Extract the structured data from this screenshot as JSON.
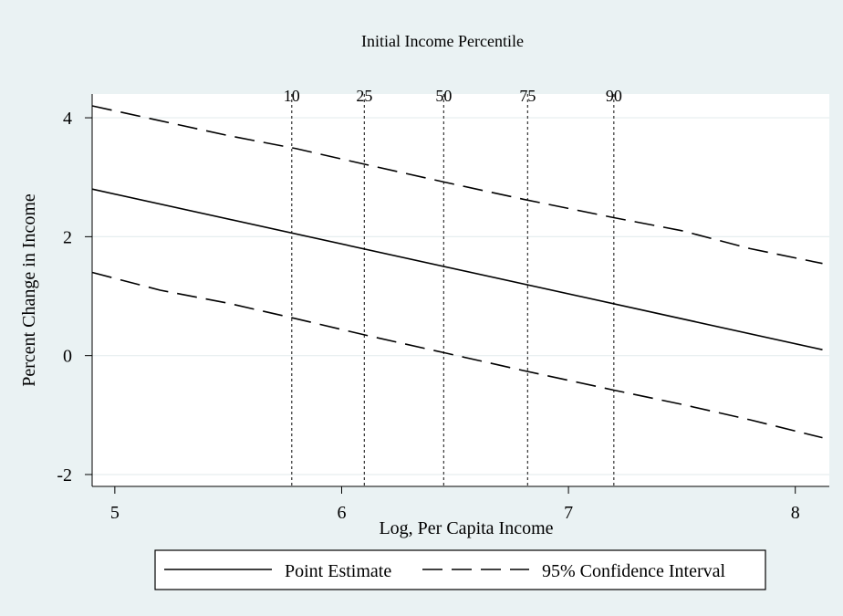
{
  "chart_data": {
    "type": "line",
    "title": "Initial Income Percentile",
    "xlabel": "Log, Per Capita Income",
    "ylabel": "Percent Change in Income",
    "xlim": [
      4.9,
      8.15
    ],
    "ylim": [
      -2.2,
      4.4
    ],
    "x_ticks": [
      5,
      6,
      7,
      8
    ],
    "y_ticks": [
      -2,
      0,
      2,
      4
    ],
    "grid": true,
    "legend_position": "bottom",
    "percentile_markers": [
      {
        "label": "10",
        "x": 5.78
      },
      {
        "label": "25",
        "x": 6.1
      },
      {
        "label": "50",
        "x": 6.45
      },
      {
        "label": "75",
        "x": 6.82
      },
      {
        "label": "90",
        "x": 7.2
      }
    ],
    "series": [
      {
        "name": "Point Estimate",
        "style": "solid",
        "color": "#000000",
        "x": [
          4.9,
          8.12
        ],
        "y": [
          2.8,
          0.1
        ]
      },
      {
        "name": "95% Confidence Interval",
        "style": "dashed",
        "color": "#000000",
        "x": [
          4.9,
          5.2,
          5.5,
          5.8,
          6.1,
          6.45,
          6.8,
          7.2,
          7.5,
          7.8,
          8.12
        ],
        "y": [
          4.2,
          3.95,
          3.7,
          3.48,
          3.22,
          2.92,
          2.63,
          2.32,
          2.1,
          1.8,
          1.55
        ]
      },
      {
        "name": "95% Confidence Interval",
        "style": "dashed",
        "color": "#000000",
        "x": [
          4.9,
          5.2,
          5.5,
          5.8,
          6.1,
          6.45,
          6.8,
          7.2,
          7.5,
          7.8,
          8.12
        ],
        "y": [
          1.4,
          1.1,
          0.88,
          0.62,
          0.35,
          0.05,
          -0.25,
          -0.58,
          -0.82,
          -1.08,
          -1.38
        ]
      }
    ]
  }
}
